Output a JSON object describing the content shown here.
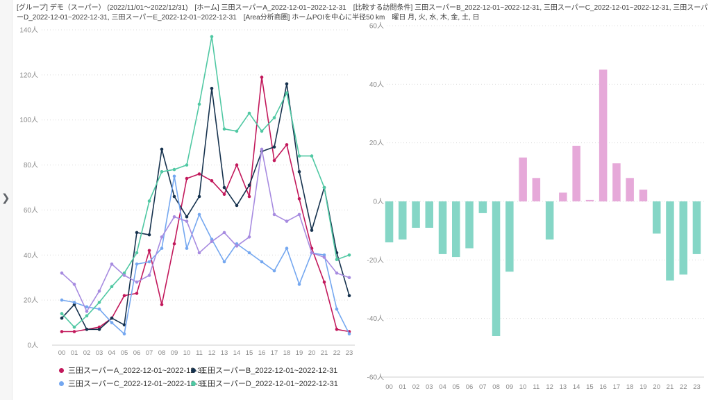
{
  "sidebar": {
    "collapse_icon": "❯"
  },
  "header": {
    "breadcrumb": "[グループ] デモ（スーパー） (2022/11/01～2022/12/31)　[ホーム] 三田スーパーA_2022-12-01~2022-12-31　[比較する訪問条件] 三田スーパーB_2022-12-01~2022-12-31, 三田スーパーC_2022-12-01~2022-12-31, 三田スーパーD_2022-12-01~2022-12-31, 三田スーパーE_2022-12-01~2022-12-31　[Area分析商圏] ホームPOIを中心に半径50 km　曜日 月, 火, 水, 木, 金, 土, 日"
  },
  "chart_data": [
    {
      "type": "line",
      "title": "",
      "x": [
        "00",
        "01",
        "02",
        "03",
        "04",
        "05",
        "06",
        "07",
        "08",
        "09",
        "10",
        "11",
        "12",
        "13",
        "14",
        "15",
        "16",
        "17",
        "18",
        "19",
        "20",
        "21",
        "22",
        "23"
      ],
      "unit": "人",
      "ylim": [
        0,
        140
      ],
      "yticks": [
        0,
        20,
        40,
        60,
        80,
        100,
        120,
        140
      ],
      "grid": "dotted-horizontal",
      "legend_position": "bottom",
      "series": [
        {
          "name": "三田スーパーA_2022-12-01~2022-12-31",
          "color": "#c2185b",
          "values": [
            6,
            6,
            7,
            8,
            12,
            22,
            23,
            42,
            18,
            45,
            74,
            76,
            73,
            67,
            80,
            66,
            119,
            82,
            89,
            65,
            43,
            28,
            7,
            6
          ]
        },
        {
          "name": "三田スーパーB_2022-12-01~2022-12-31",
          "color": "#16324e",
          "values": [
            12,
            18,
            7,
            7,
            12,
            9,
            50,
            49,
            87,
            66,
            57,
            66,
            114,
            70,
            62,
            71,
            86,
            88,
            116,
            77,
            51,
            70,
            41,
            22
          ]
        },
        {
          "name": "三田スーパーC_2022-12-01~2022-12-31",
          "color": "#74a7f0",
          "values": [
            20,
            19,
            17,
            16,
            10,
            5,
            36,
            37,
            43,
            75,
            43,
            58,
            47,
            37,
            45,
            41,
            37,
            33,
            43,
            27,
            41,
            40,
            16,
            5
          ]
        },
        {
          "name": "三田スーパーD_2022-12-01~2022-12-31",
          "color": "#50c8a3",
          "values": [
            14,
            8,
            13,
            19,
            26,
            32,
            41,
            64,
            77,
            78,
            80,
            107,
            137,
            96,
            95,
            103,
            95,
            101,
            112,
            84,
            84,
            70,
            38,
            40
          ]
        },
        {
          "name": "三田スーパーE_2022-12-01~2022-12-31",
          "color": "#a78be0",
          "in_visible_legend": false,
          "values": [
            32,
            27,
            15,
            24,
            36,
            31,
            28,
            31,
            48,
            57,
            55,
            41,
            46,
            50,
            44,
            48,
            87,
            58,
            55,
            58,
            41,
            39,
            32,
            30
          ]
        }
      ]
    },
    {
      "type": "bar",
      "categories": [
        "00",
        "01",
        "02",
        "03",
        "04",
        "05",
        "06",
        "07",
        "08",
        "09",
        "10",
        "11",
        "12",
        "13",
        "14",
        "15",
        "16",
        "17",
        "18",
        "19",
        "20",
        "21",
        "22",
        "23"
      ],
      "values": [
        -14,
        -13,
        -9,
        -9,
        -18,
        -19,
        -16,
        -4,
        -46,
        -24,
        15,
        8,
        -13,
        3,
        19,
        0.5,
        45,
        13,
        8,
        4,
        -11,
        -27,
        -25,
        -18
      ],
      "unit": "人",
      "ylim": [
        -60,
        60
      ],
      "yticks": [
        60,
        40,
        20,
        0,
        -20,
        -40,
        -60
      ],
      "grid": "dotted-horizontal",
      "positive_color": "#e6a9d9",
      "negative_color": "#85d6c6"
    }
  ]
}
